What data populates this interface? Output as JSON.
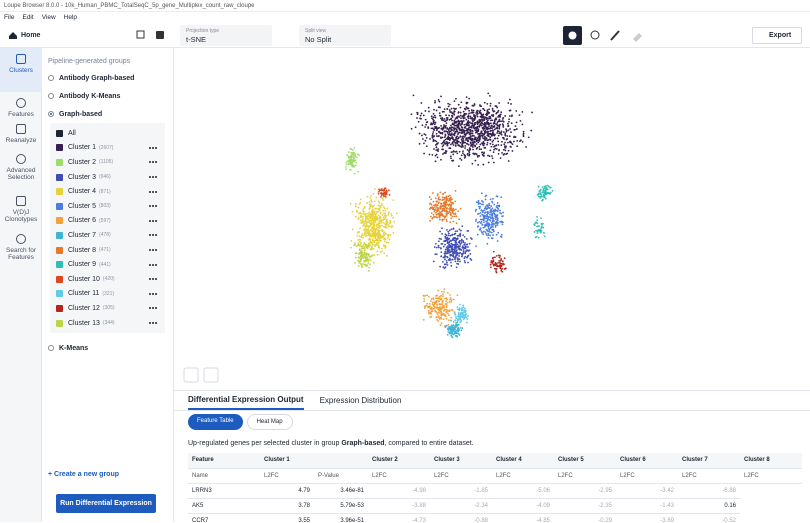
{
  "window": {
    "title": "Loupe Browser 8.0.0 - 10k_Human_PBMC_TotalSeqC_5p_gene_Multiplex_count_raw_cloupe",
    "menu": [
      "File",
      "Edit",
      "View",
      "Help"
    ]
  },
  "toolbar": {
    "home": "Home",
    "projection_label": "Projection type",
    "projection": "t-SNE",
    "split_label": "Split view",
    "split": "No Split",
    "export": "Export"
  },
  "nav": [
    "Clusters",
    "Features",
    "Reanalyze",
    "Advanced Selection",
    "V(D)J Clonotypes",
    "Search for Features"
  ],
  "groups": {
    "heading": "Pipeline-generated groups",
    "options": [
      "Antibody Graph-based",
      "Antibody K-Means"
    ],
    "selected": "Graph-based",
    "all": "All",
    "clusters": [
      {
        "name": "Cluster 1",
        "count": "(2607)",
        "color": "#35204f"
      },
      {
        "name": "Cluster 2",
        "count": "(1105)",
        "color": "#9fdc6a"
      },
      {
        "name": "Cluster 3",
        "count": "(946)",
        "color": "#3f4db5"
      },
      {
        "name": "Cluster 4",
        "count": "(871)",
        "color": "#e6d23a"
      },
      {
        "name": "Cluster 5",
        "count": "(803)",
        "color": "#4d7de0"
      },
      {
        "name": "Cluster 6",
        "count": "(597)",
        "color": "#f2a33e"
      },
      {
        "name": "Cluster 7",
        "count": "(478)",
        "color": "#3db6d6"
      },
      {
        "name": "Cluster 8",
        "count": "(471)",
        "color": "#e67a2b"
      },
      {
        "name": "Cluster 9",
        "count": "(441)",
        "color": "#2ec0b5"
      },
      {
        "name": "Cluster 10",
        "count": "(420)",
        "color": "#e2451d"
      },
      {
        "name": "Cluster 11",
        "count": "(321)",
        "color": "#61cbe8"
      },
      {
        "name": "Cluster 12",
        "count": "(305)",
        "color": "#b3261e"
      },
      {
        "name": "Cluster 13",
        "count": "(344)",
        "color": "#bcd64a"
      }
    ],
    "other": "K-Means",
    "create": "+ Create a new group",
    "run": "Run Differential Expression"
  },
  "results": {
    "tabs": [
      "Differential Expression Output",
      "Expression Distribution"
    ],
    "subtabs": [
      "Feature Table",
      "Heat Map"
    ],
    "caption_pre": "Up-regulated genes per selected cluster in group ",
    "caption_group": "Graph-based",
    "caption_post": ", compared to entire dataset.",
    "table": {
      "feature": "Feature",
      "name": "Name",
      "l2fc": "L2FC",
      "pvalue": "P-Value",
      "clusters": [
        "Cluster 1",
        "Cluster 2",
        "Cluster 3",
        "Cluster 4",
        "Cluster 5",
        "Cluster 6",
        "Cluster 7",
        "Cluster 8"
      ],
      "rows": [
        {
          "name": "LRRN3",
          "values": [
            4.79,
            3.46e-81,
            -4.98,
            -1.85,
            -5.06,
            -2.95,
            -3.42,
            -6.88
          ]
        },
        {
          "name": "AK5",
          "values": [
            3.78,
            5.79e-53,
            -3.88,
            -2.34,
            -4.09,
            -2.35,
            -1.43,
            0.16
          ]
        },
        {
          "name": "CCR7",
          "values": [
            3.55,
            3.96e-51,
            -4.73,
            -0.88,
            -4.85,
            -0.29,
            -3.69,
            -0.52
          ]
        }
      ]
    }
  }
}
